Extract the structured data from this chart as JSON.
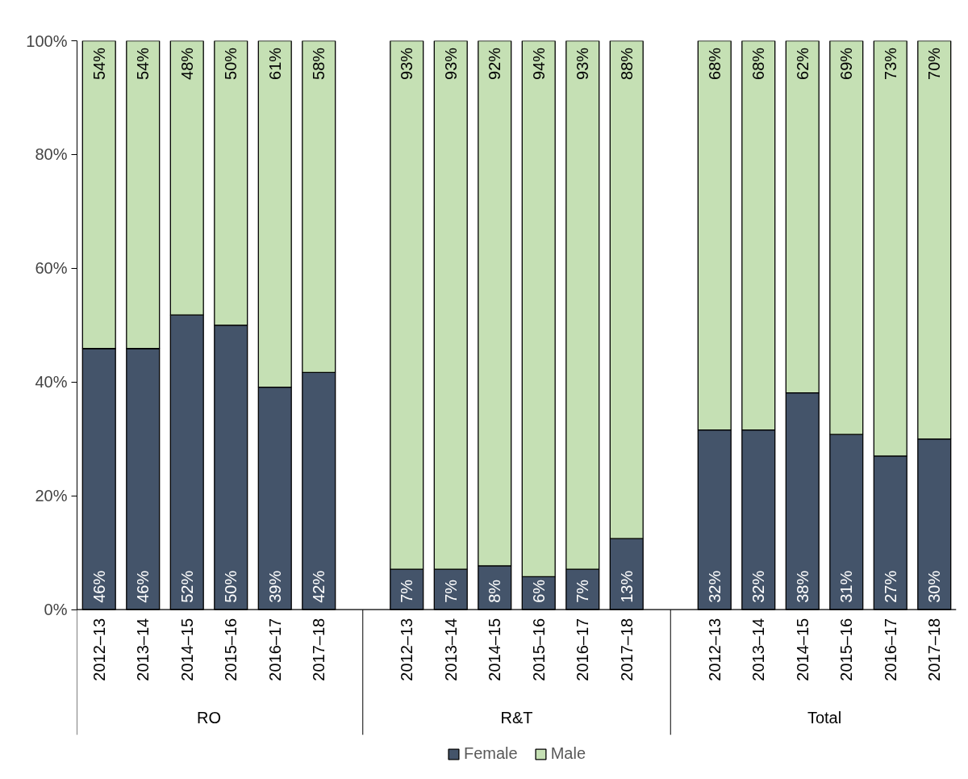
{
  "chart_data": {
    "type": "bar",
    "stacked": true,
    "categories": [
      "2012–13",
      "2013–14",
      "2014–15",
      "2015–16",
      "2016–17",
      "2017–18",
      null,
      "2012–13",
      "2013–14",
      "2014–15",
      "2015–16",
      "2016–17",
      "2017–18",
      null,
      "2012–13",
      "2013–14",
      "2014–15",
      "2015–16",
      "2016–17",
      "2017–18"
    ],
    "series": [
      {
        "name": "Female",
        "color": "#44546a",
        "values": [
          45.9,
          45.9,
          51.8,
          50,
          39.1,
          41.7,
          null,
          7.1,
          7.1,
          7.7,
          5.8,
          7.1,
          12.5,
          null,
          31.6,
          31.6,
          38.1,
          30.8,
          27,
          30
        ],
        "value_labels": [
          "46%",
          "46%",
          "52%",
          "50%",
          "39%",
          "42%",
          null,
          "7%",
          "7%",
          "8%",
          "6%",
          "7%",
          "13%",
          null,
          "32%",
          "32%",
          "38%",
          "31%",
          "27%",
          "30%"
        ]
      },
      {
        "name": "Male",
        "color": "#c5e0b4",
        "values": [
          54.1,
          54.1,
          48.2,
          50,
          60.9,
          58.3,
          null,
          92.9,
          92.9,
          92.3,
          94.2,
          92.9,
          87.5,
          null,
          68.4,
          68.4,
          61.9,
          69.2,
          73,
          70
        ],
        "value_labels": [
          "54%",
          "54%",
          "48%",
          "50%",
          "61%",
          "58%",
          null,
          "93%",
          "93%",
          "92%",
          "94%",
          "93%",
          "88%",
          null,
          "68%",
          "68%",
          "62%",
          "69%",
          "73%",
          "70%"
        ]
      }
    ],
    "annotations": [
      "RO",
      "R&T",
      "Total"
    ],
    "ylim": [
      0,
      100
    ],
    "yticks": [
      {
        "value": 0,
        "label": "0%"
      },
      {
        "value": 20,
        "label": "20%"
      },
      {
        "value": 40,
        "label": "40%"
      },
      {
        "value": 60,
        "label": "60%"
      },
      {
        "value": 80,
        "label": "80%"
      },
      {
        "value": 100,
        "label": "100%"
      }
    ],
    "grid": false,
    "legend": "bottom"
  }
}
